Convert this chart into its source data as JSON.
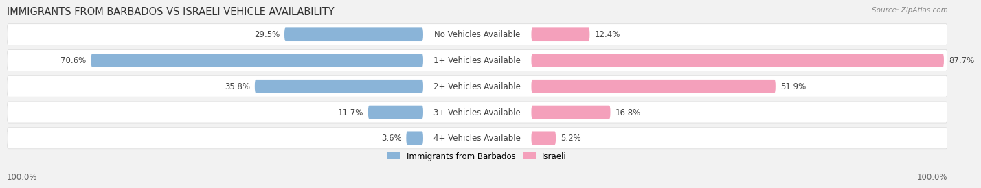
{
  "title": "IMMIGRANTS FROM BARBADOS VS ISRAELI VEHICLE AVAILABILITY",
  "source": "Source: ZipAtlas.com",
  "categories": [
    "No Vehicles Available",
    "1+ Vehicles Available",
    "2+ Vehicles Available",
    "3+ Vehicles Available",
    "4+ Vehicles Available"
  ],
  "barbados_values": [
    29.5,
    70.6,
    35.8,
    11.7,
    3.6
  ],
  "israeli_values": [
    12.4,
    87.7,
    51.9,
    16.8,
    5.2
  ],
  "max_value": 100.0,
  "barbados_color": "#8ab4d8",
  "barbados_color_dark": "#5b8fbf",
  "israeli_color": "#f4a0bb",
  "israeli_color_dark": "#e8507a",
  "background_color": "#f2f2f2",
  "row_bg_color": "#ffffff",
  "row_separator_color": "#d8d8d8",
  "label_fontsize": 8.5,
  "title_fontsize": 10.5,
  "source_fontsize": 7.5,
  "legend_label_barbados": "Immigrants from Barbados",
  "legend_label_israeli": "Israeli",
  "bottom_label": "100.0%"
}
